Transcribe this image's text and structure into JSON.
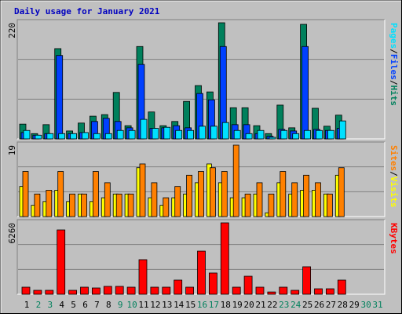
{
  "chart_data": [
    {
      "type": "bar",
      "title": "Daily usage for January 2021",
      "ylim": [
        0,
        220
      ],
      "yticks": [
        220
      ],
      "series": [
        {
          "name": "Hits",
          "color": "#00805c",
          "values": [
            28,
            10,
            27,
            171,
            15,
            30,
            43,
            46,
            88,
            25,
            175,
            51,
            25,
            33,
            71,
            101,
            89,
            220,
            59,
            59,
            25,
            10,
            64,
            21,
            217,
            58,
            24,
            45,
            0,
            0,
            0
          ]
        },
        {
          "name": "Files",
          "color": "#0040ff",
          "values": [
            12,
            7,
            10,
            158,
            10,
            12,
            33,
            39,
            33,
            21,
            141,
            20,
            21,
            25,
            21,
            86,
            74,
            175,
            27,
            27,
            10,
            5,
            18,
            15,
            175,
            18,
            16,
            20,
            0,
            0,
            0
          ]
        },
        {
          "name": "Pages",
          "color": "#00e0ff",
          "values": [
            16,
            7,
            10,
            10,
            10,
            12,
            10,
            10,
            16,
            16,
            37,
            20,
            22,
            16,
            16,
            24,
            24,
            31,
            16,
            10,
            16,
            3,
            16,
            10,
            16,
            16,
            16,
            34,
            0,
            0,
            0
          ]
        }
      ]
    },
    {
      "type": "bar",
      "ylim": [
        0,
        19
      ],
      "yticks": [
        19
      ],
      "series": [
        {
          "name": "Visits",
          "color": "#ffff00",
          "values": [
            8,
            3,
            4,
            7,
            4,
            6,
            4,
            5,
            6,
            6,
            13,
            5,
            3,
            5,
            6,
            9,
            14,
            9,
            5,
            5,
            6,
            1,
            9,
            6,
            7,
            7,
            6,
            11,
            0,
            0,
            0
          ]
        },
        {
          "name": "Sites",
          "color": "#ff8000",
          "values": [
            12,
            6,
            7,
            12,
            6,
            6,
            12,
            9,
            6,
            6,
            14,
            9,
            5,
            8,
            11,
            12,
            13,
            12,
            19,
            6,
            9,
            6,
            12,
            9,
            11,
            9,
            6,
            13,
            0,
            0,
            0
          ]
        }
      ]
    },
    {
      "type": "bar",
      "ylim": [
        0,
        6260
      ],
      "yticks": [
        6260
      ],
      "categories": [
        "1",
        "2",
        "3",
        "4",
        "5",
        "6",
        "7",
        "8",
        "9",
        "10",
        "11",
        "12",
        "13",
        "14",
        "15",
        "16",
        "17",
        "18",
        "19",
        "20",
        "21",
        "22",
        "23",
        "24",
        "25",
        "26",
        "27",
        "28",
        "29",
        "30",
        "31"
      ],
      "category_colors": [
        "#000000",
        "#00805c",
        "#00805c",
        "#000000",
        "#000000",
        "#000000",
        "#000000",
        "#000000",
        "#00805c",
        "#00805c",
        "#000000",
        "#000000",
        "#000000",
        "#000000",
        "#000000",
        "#00805c",
        "#00805c",
        "#000000",
        "#000000",
        "#000000",
        "#000000",
        "#000000",
        "#00805c",
        "#00805c",
        "#000000",
        "#000000",
        "#000000",
        "#000000",
        "#000000",
        "#00805c",
        "#00805c"
      ],
      "series": [
        {
          "name": "KBytes",
          "color": "#ff0000",
          "values": [
            620,
            345,
            345,
            5640,
            345,
            620,
            550,
            690,
            690,
            620,
            3030,
            620,
            620,
            1240,
            620,
            3780,
            1860,
            6260,
            620,
            1580,
            620,
            200,
            620,
            345,
            2410,
            480,
            480,
            1240,
            0,
            0,
            0
          ]
        }
      ]
    }
  ]
}
